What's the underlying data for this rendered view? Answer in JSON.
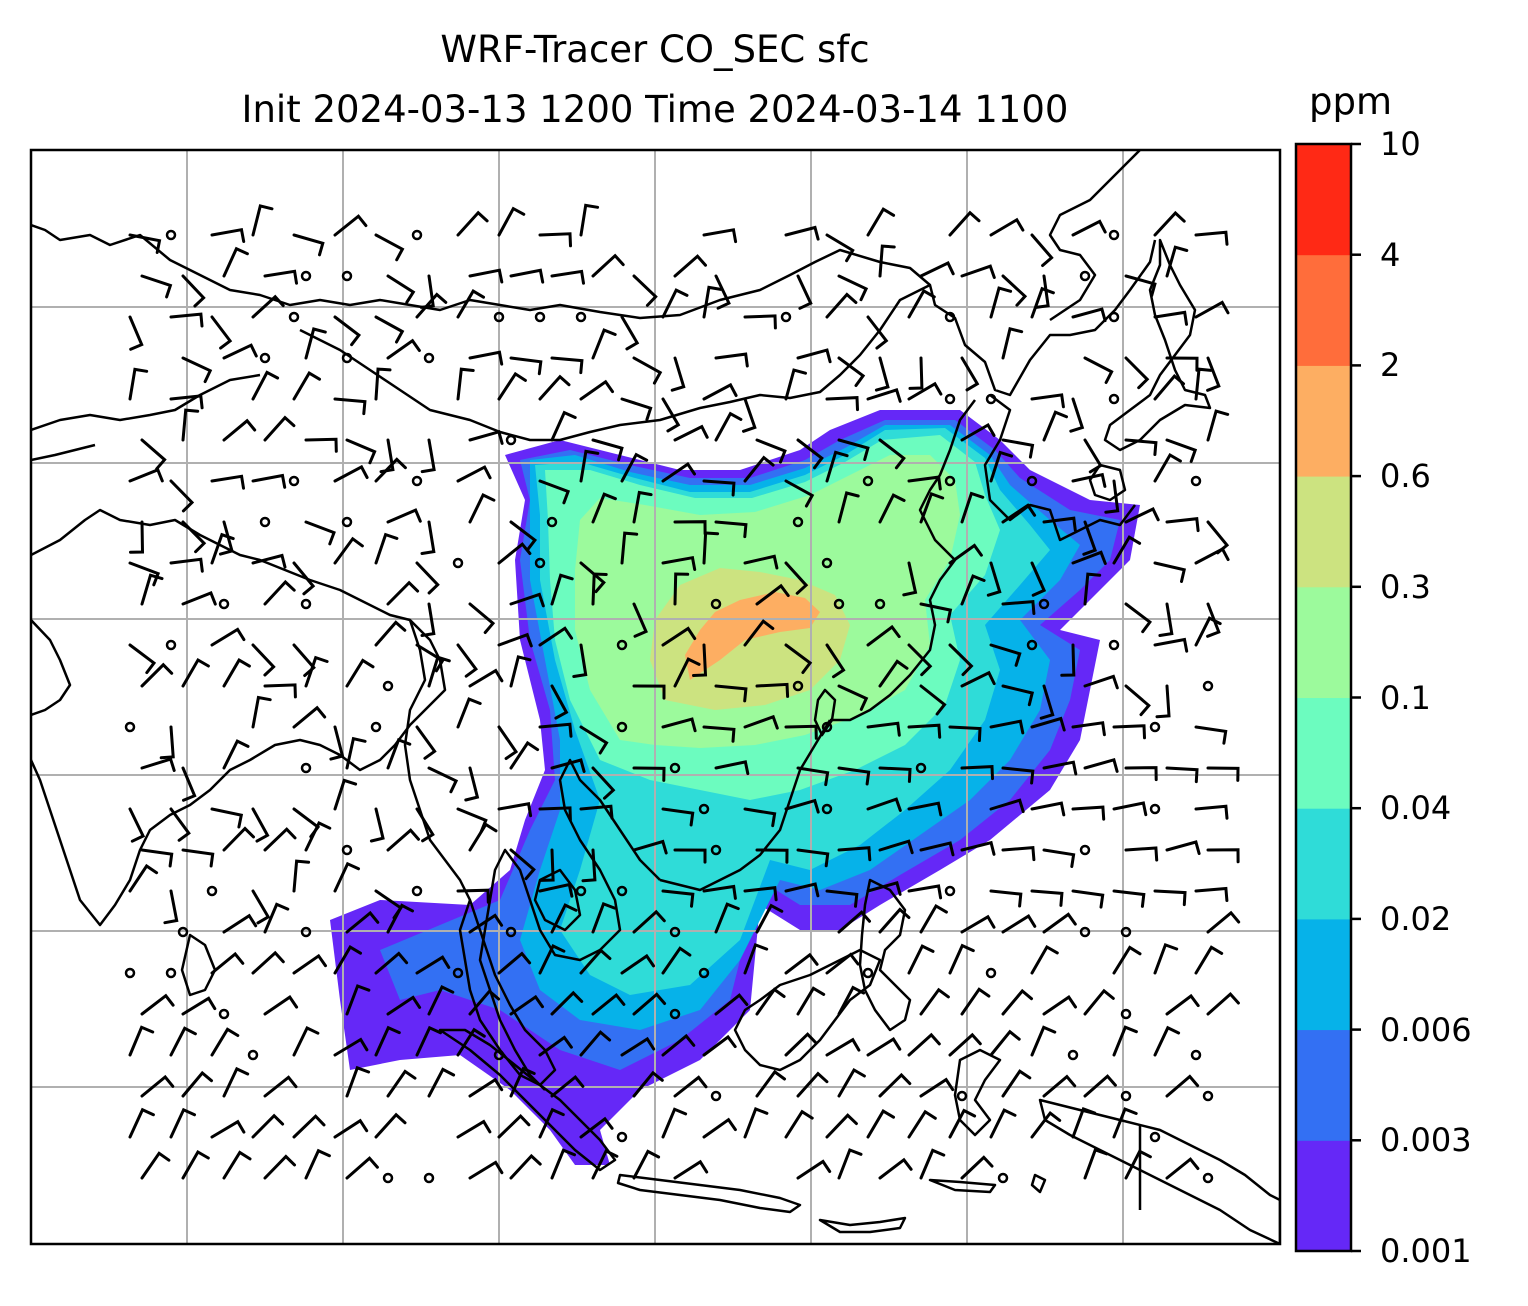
{
  "title": {
    "line1": "WRF-Tracer CO_SEC sfc",
    "line2": "Init 2024-03-13 1200 Time 2024-03-14 1100"
  },
  "colorbar": {
    "units": "ppm",
    "levels": [
      "0.001",
      "0.003",
      "0.006",
      "0.02",
      "0.04",
      "0.1",
      "0.3",
      "0.6",
      "2",
      "4",
      "10"
    ],
    "colors": [
      "#6528f7",
      "#3370f3",
      "#06b2e9",
      "#2fdcd8",
      "#6cfcbf",
      "#9cfa9c",
      "#cce380",
      "#fdae62",
      "#ff6d3b",
      "#ff2915"
    ]
  },
  "map": {
    "background": "#ffffff",
    "gridlines": true,
    "wind_barbs": "black",
    "coastlines": "black"
  }
}
